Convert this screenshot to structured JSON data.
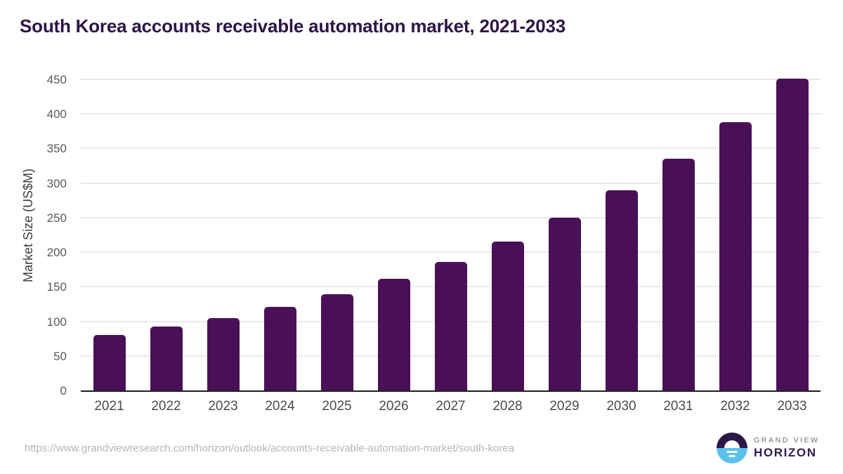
{
  "title": "South Korea accounts receivable automation market, 2021-2033",
  "chart_data": {
    "type": "bar",
    "title": "South Korea accounts receivable automation market, 2021-2033",
    "categories": [
      "2021",
      "2022",
      "2023",
      "2024",
      "2025",
      "2026",
      "2027",
      "2028",
      "2029",
      "2030",
      "2031",
      "2032",
      "2033"
    ],
    "values": [
      80,
      92,
      105,
      121,
      139,
      161,
      186,
      215,
      250,
      289,
      335,
      388,
      451
    ],
    "xlabel": "",
    "ylabel": "Market Size (US$M)",
    "ylim": [
      0,
      463
    ],
    "yticks": [
      0,
      50,
      100,
      150,
      200,
      250,
      300,
      350,
      400,
      450
    ],
    "grid": true,
    "legend": "none",
    "bar_color": "#4a1057"
  },
  "footer": {
    "source_url": "https://www.grandviewresearch.com/horizon/outlook/accounts-receivable-automation-market/south-korea",
    "logo": {
      "brand_top": "GRAND VIEW",
      "brand_bottom": "HORIZON"
    }
  },
  "colors": {
    "title_text": "#2d1445",
    "bar": "#4a1057",
    "gridline": "#e9e9e9",
    "axis_line": "#1f1f1f",
    "y_tick_text": "#595959",
    "x_tick_text": "#4a4a4a",
    "url_text": "#b5b5b5",
    "logo_blue": "#5bc2ee",
    "logo_purple": "#2d1747"
  }
}
